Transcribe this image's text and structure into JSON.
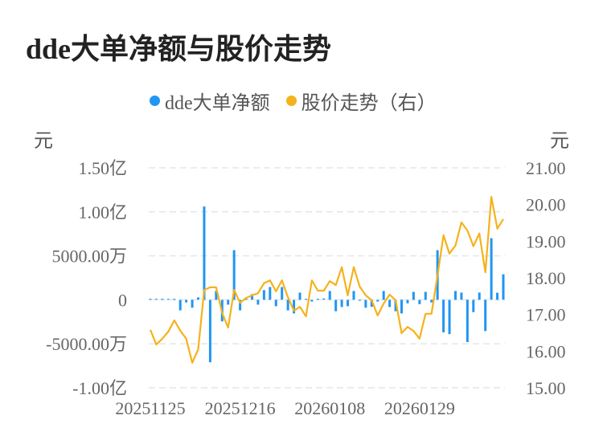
{
  "title": "dde大单净额与股价走势",
  "legend": [
    {
      "label": "dde大单净额",
      "color": "#2196f3"
    },
    {
      "label": "股价走势（右）",
      "color": "#f5b21b"
    }
  ],
  "units": {
    "left": "元",
    "right": "元"
  },
  "chart_data": {
    "type": "bar+line",
    "title": "dde大单净额与股价走势",
    "x_tick_labels": [
      "20251125",
      "20251216",
      "20260108",
      "20260129"
    ],
    "x_tick_indices": [
      0,
      15,
      30,
      45
    ],
    "left_axis": {
      "unit": "元",
      "ylim": [
        -10000,
        15000
      ],
      "tick_values": [
        15000,
        10000,
        5000,
        0,
        -5000,
        -10000
      ],
      "tick_labels": [
        "1.50亿",
        "1.00亿",
        "5000.00万",
        "0",
        "-5000.00万",
        "-1.00亿"
      ],
      "value_unit": "万元"
    },
    "right_axis": {
      "unit": "元",
      "ylim": [
        15,
        21
      ],
      "tick_values": [
        21,
        20,
        19,
        18,
        17,
        16,
        15
      ],
      "tick_labels": [
        "21.00",
        "20.00",
        "19.00",
        "18.00",
        "17.00",
        "16.00",
        "15.00"
      ]
    },
    "grid": true,
    "legend_position": "top",
    "series": [
      {
        "name": "dde大单净额",
        "type": "bar",
        "axis": "left",
        "values": [
          50,
          60,
          40,
          50,
          80,
          -1200,
          -300,
          -900,
          270,
          10600,
          -7100,
          1000,
          -2450,
          -550,
          5640,
          -1200,
          100,
          640,
          -550,
          1100,
          1450,
          -730,
          1450,
          -1200,
          -1550,
          820,
          100,
          -200,
          100,
          150,
          1000,
          -1300,
          -820,
          -730,
          1000,
          -100,
          -900,
          -800,
          -200,
          1000,
          -820,
          -1300,
          -1550,
          -400,
          900,
          -500,
          900,
          -300,
          5640,
          -3700,
          -3900,
          1000,
          820,
          -4800,
          -1400,
          820,
          -3550,
          7000,
          800,
          2900
        ]
      },
      {
        "name": "股价走势（右）",
        "type": "line",
        "axis": "right",
        "values": [
          16.58,
          16.18,
          16.34,
          16.53,
          16.84,
          16.56,
          16.34,
          15.68,
          16.05,
          17.67,
          17.74,
          17.74,
          17.04,
          16.64,
          17.67,
          17.32,
          17.45,
          17.52,
          17.58,
          17.85,
          17.93,
          17.63,
          17.93,
          17.47,
          17.1,
          17.21,
          16.95,
          17.93,
          17.65,
          17.65,
          17.91,
          17.8,
          18.29,
          17.52,
          18.29,
          17.76,
          17.52,
          17.39,
          16.97,
          17.3,
          17.54,
          17.39,
          16.49,
          16.66,
          16.55,
          16.34,
          17.02,
          17.02,
          18.07,
          19.16,
          18.66,
          18.88,
          19.51,
          19.29,
          18.86,
          19.21,
          18.15,
          20.21,
          19.34,
          19.6
        ]
      }
    ]
  }
}
